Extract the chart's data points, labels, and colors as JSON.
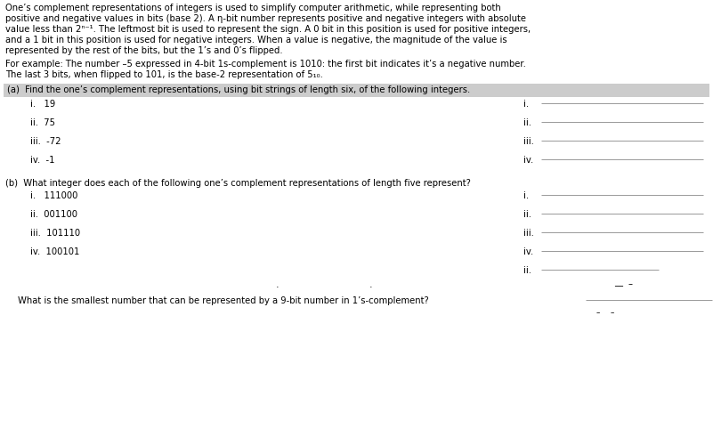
{
  "bg_color": "#ffffff",
  "fig_width": 8.01,
  "fig_height": 4.91,
  "dpi": 100,
  "header_a": "(a)  Find the one’s complement representations, using bit strings of length six, of the following integers.",
  "header_b": "(b)  What integer does each of the following one’s complement representations of length five represent?",
  "items_a_left": [
    "i.   19",
    "ii.  75",
    "iii.  -72",
    "iv.  -1"
  ],
  "labels_a": [
    "i.",
    "ii.",
    "iii.",
    "iv."
  ],
  "items_b_left": [
    "i.   111000",
    "ii.  001100",
    "iii.  101110",
    "iv.  100101"
  ],
  "labels_b": [
    "i.",
    "ii.",
    "iii.",
    "iv."
  ],
  "header_bg": "#cccccc",
  "text_color": "#000000",
  "line_color": "#999999",
  "font_size_body": 7.2,
  "font_size_header": 7.2
}
